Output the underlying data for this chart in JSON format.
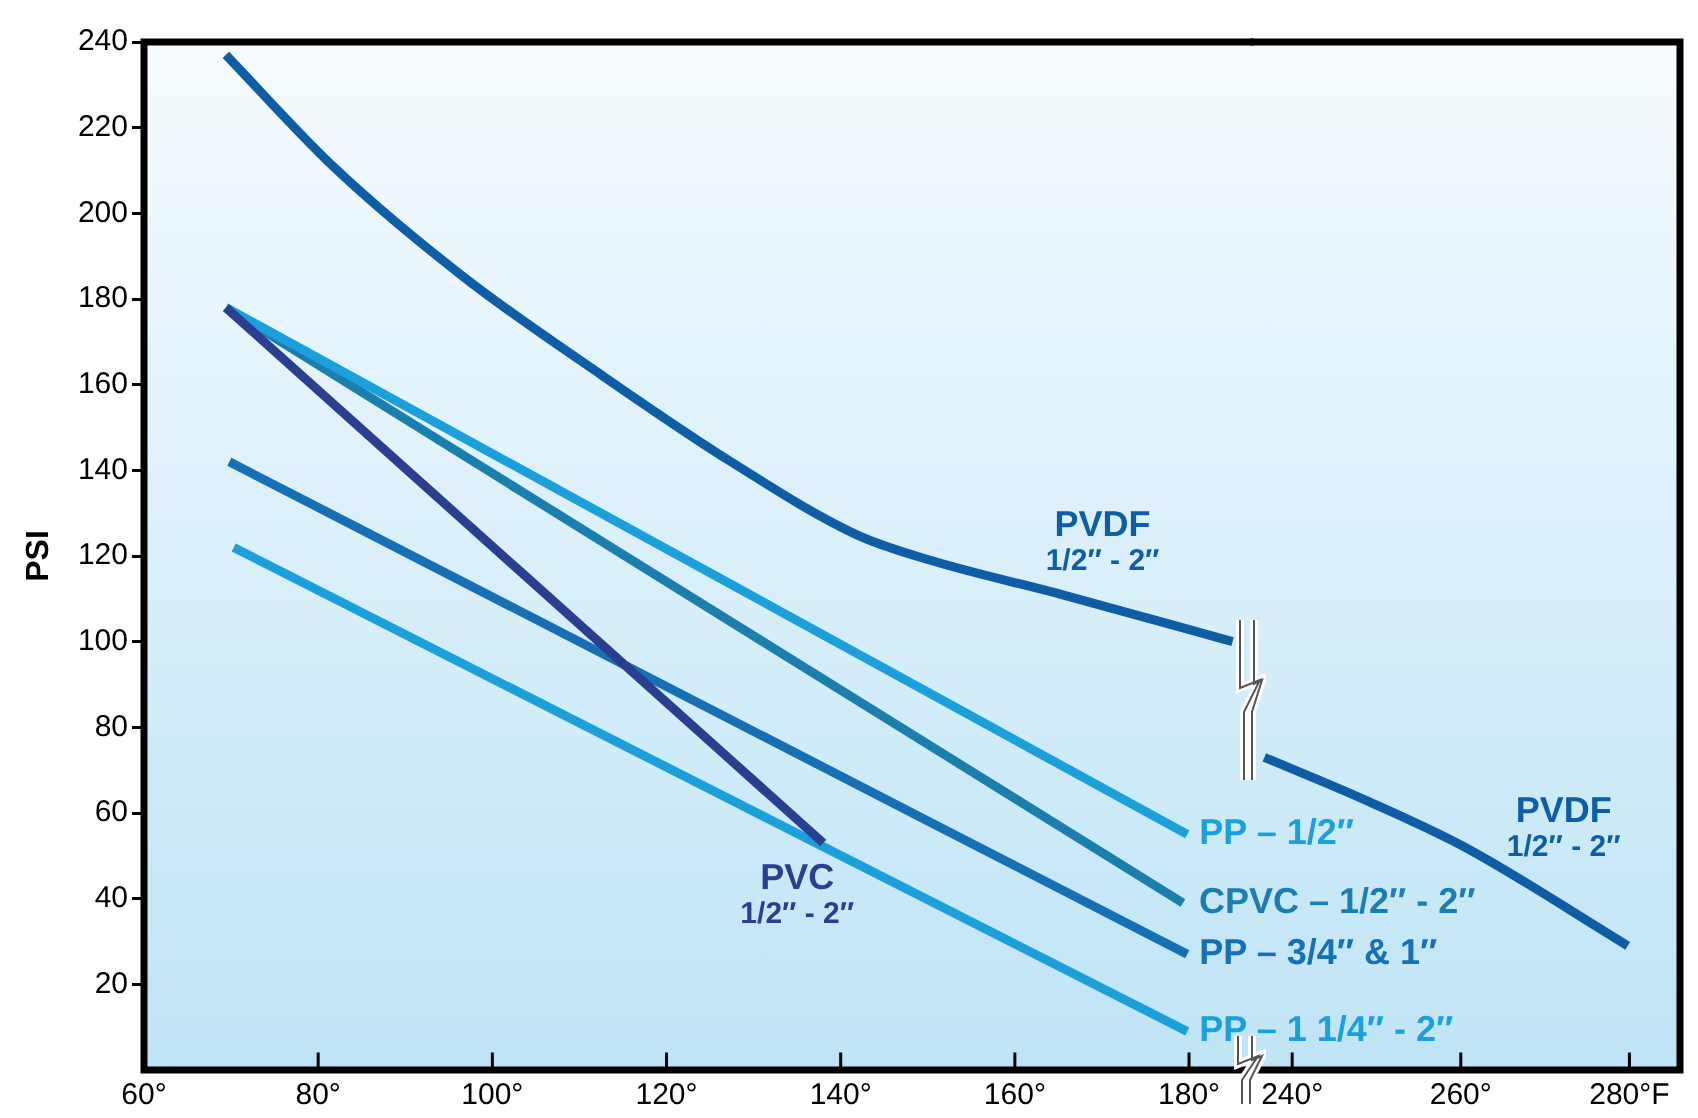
{
  "chart_data": [
    {
      "type": "line",
      "ylabel": "PSI",
      "xlim": [
        60,
        187
      ],
      "ylim": [
        0,
        240
      ],
      "xticks": [
        {
          "value": 60,
          "label": "60°"
        },
        {
          "value": 80,
          "label": "80°"
        },
        {
          "value": 100,
          "label": "100°"
        },
        {
          "value": 120,
          "label": "120°"
        },
        {
          "value": 140,
          "label": "140°"
        },
        {
          "value": 160,
          "label": "160°"
        },
        {
          "value": 180,
          "label": "180°"
        }
      ],
      "yticks": [
        20,
        40,
        60,
        80,
        100,
        120,
        140,
        160,
        180,
        200,
        220,
        240
      ],
      "marker": "none",
      "line_style": "solid",
      "series": [
        {
          "name": "PVDF\n1/2″ - 2″",
          "color": "#0d5ea6",
          "x": [
            69.4,
            81.7,
            96.8,
            112,
            127.4,
            141.8,
            150.3,
            165.4,
            185
          ],
          "values": [
            237,
            211,
            185,
            163,
            142,
            125,
            119,
            111,
            100
          ]
        },
        {
          "name": "PVC\n1/2″ - 2″",
          "color": "#2a3f8f",
          "x": [
            69.4,
            138
          ],
          "values": [
            178,
            53
          ]
        },
        {
          "name": "PP – 1/2″",
          "color": "#1ca0dc",
          "x": [
            69.4,
            179.8
          ],
          "values": [
            178,
            55
          ]
        },
        {
          "name": "CPVC – 1/2″ - 2″",
          "color": "#1a7fae",
          "x": [
            69.4,
            179.3
          ],
          "values": [
            178,
            39
          ]
        },
        {
          "name": "PP – 3/4″ & 1″",
          "color": "#1670b5",
          "x": [
            69.8,
            179.8
          ],
          "values": [
            142,
            27
          ]
        },
        {
          "name": "PP – 1 1/4″ - 2″",
          "color": "#1ca0dc",
          "x": [
            70.3,
            179.8
          ],
          "values": [
            122,
            9
          ]
        }
      ]
    },
    {
      "type": "line",
      "xlim": [
        235,
        286
      ],
      "ylim": [
        0,
        240
      ],
      "xticks": [
        {
          "value": 240,
          "label": "240°"
        },
        {
          "value": 260,
          "label": "260°"
        },
        {
          "value": 280,
          "label": "280°F"
        }
      ],
      "yticks": [
        20,
        40,
        60,
        80,
        100,
        120,
        140,
        160,
        180,
        200,
        220,
        240
      ],
      "tick_labels": "x",
      "marker": "none",
      "line_style": "solid",
      "series": [
        {
          "name": "PVDF\n1/2″ - 2″",
          "color": "#0d5ea6",
          "x": [
            236.7,
            248.7,
            260.5,
            279.8
          ],
          "values": [
            73,
            63,
            52,
            29
          ]
        }
      ]
    }
  ]
}
